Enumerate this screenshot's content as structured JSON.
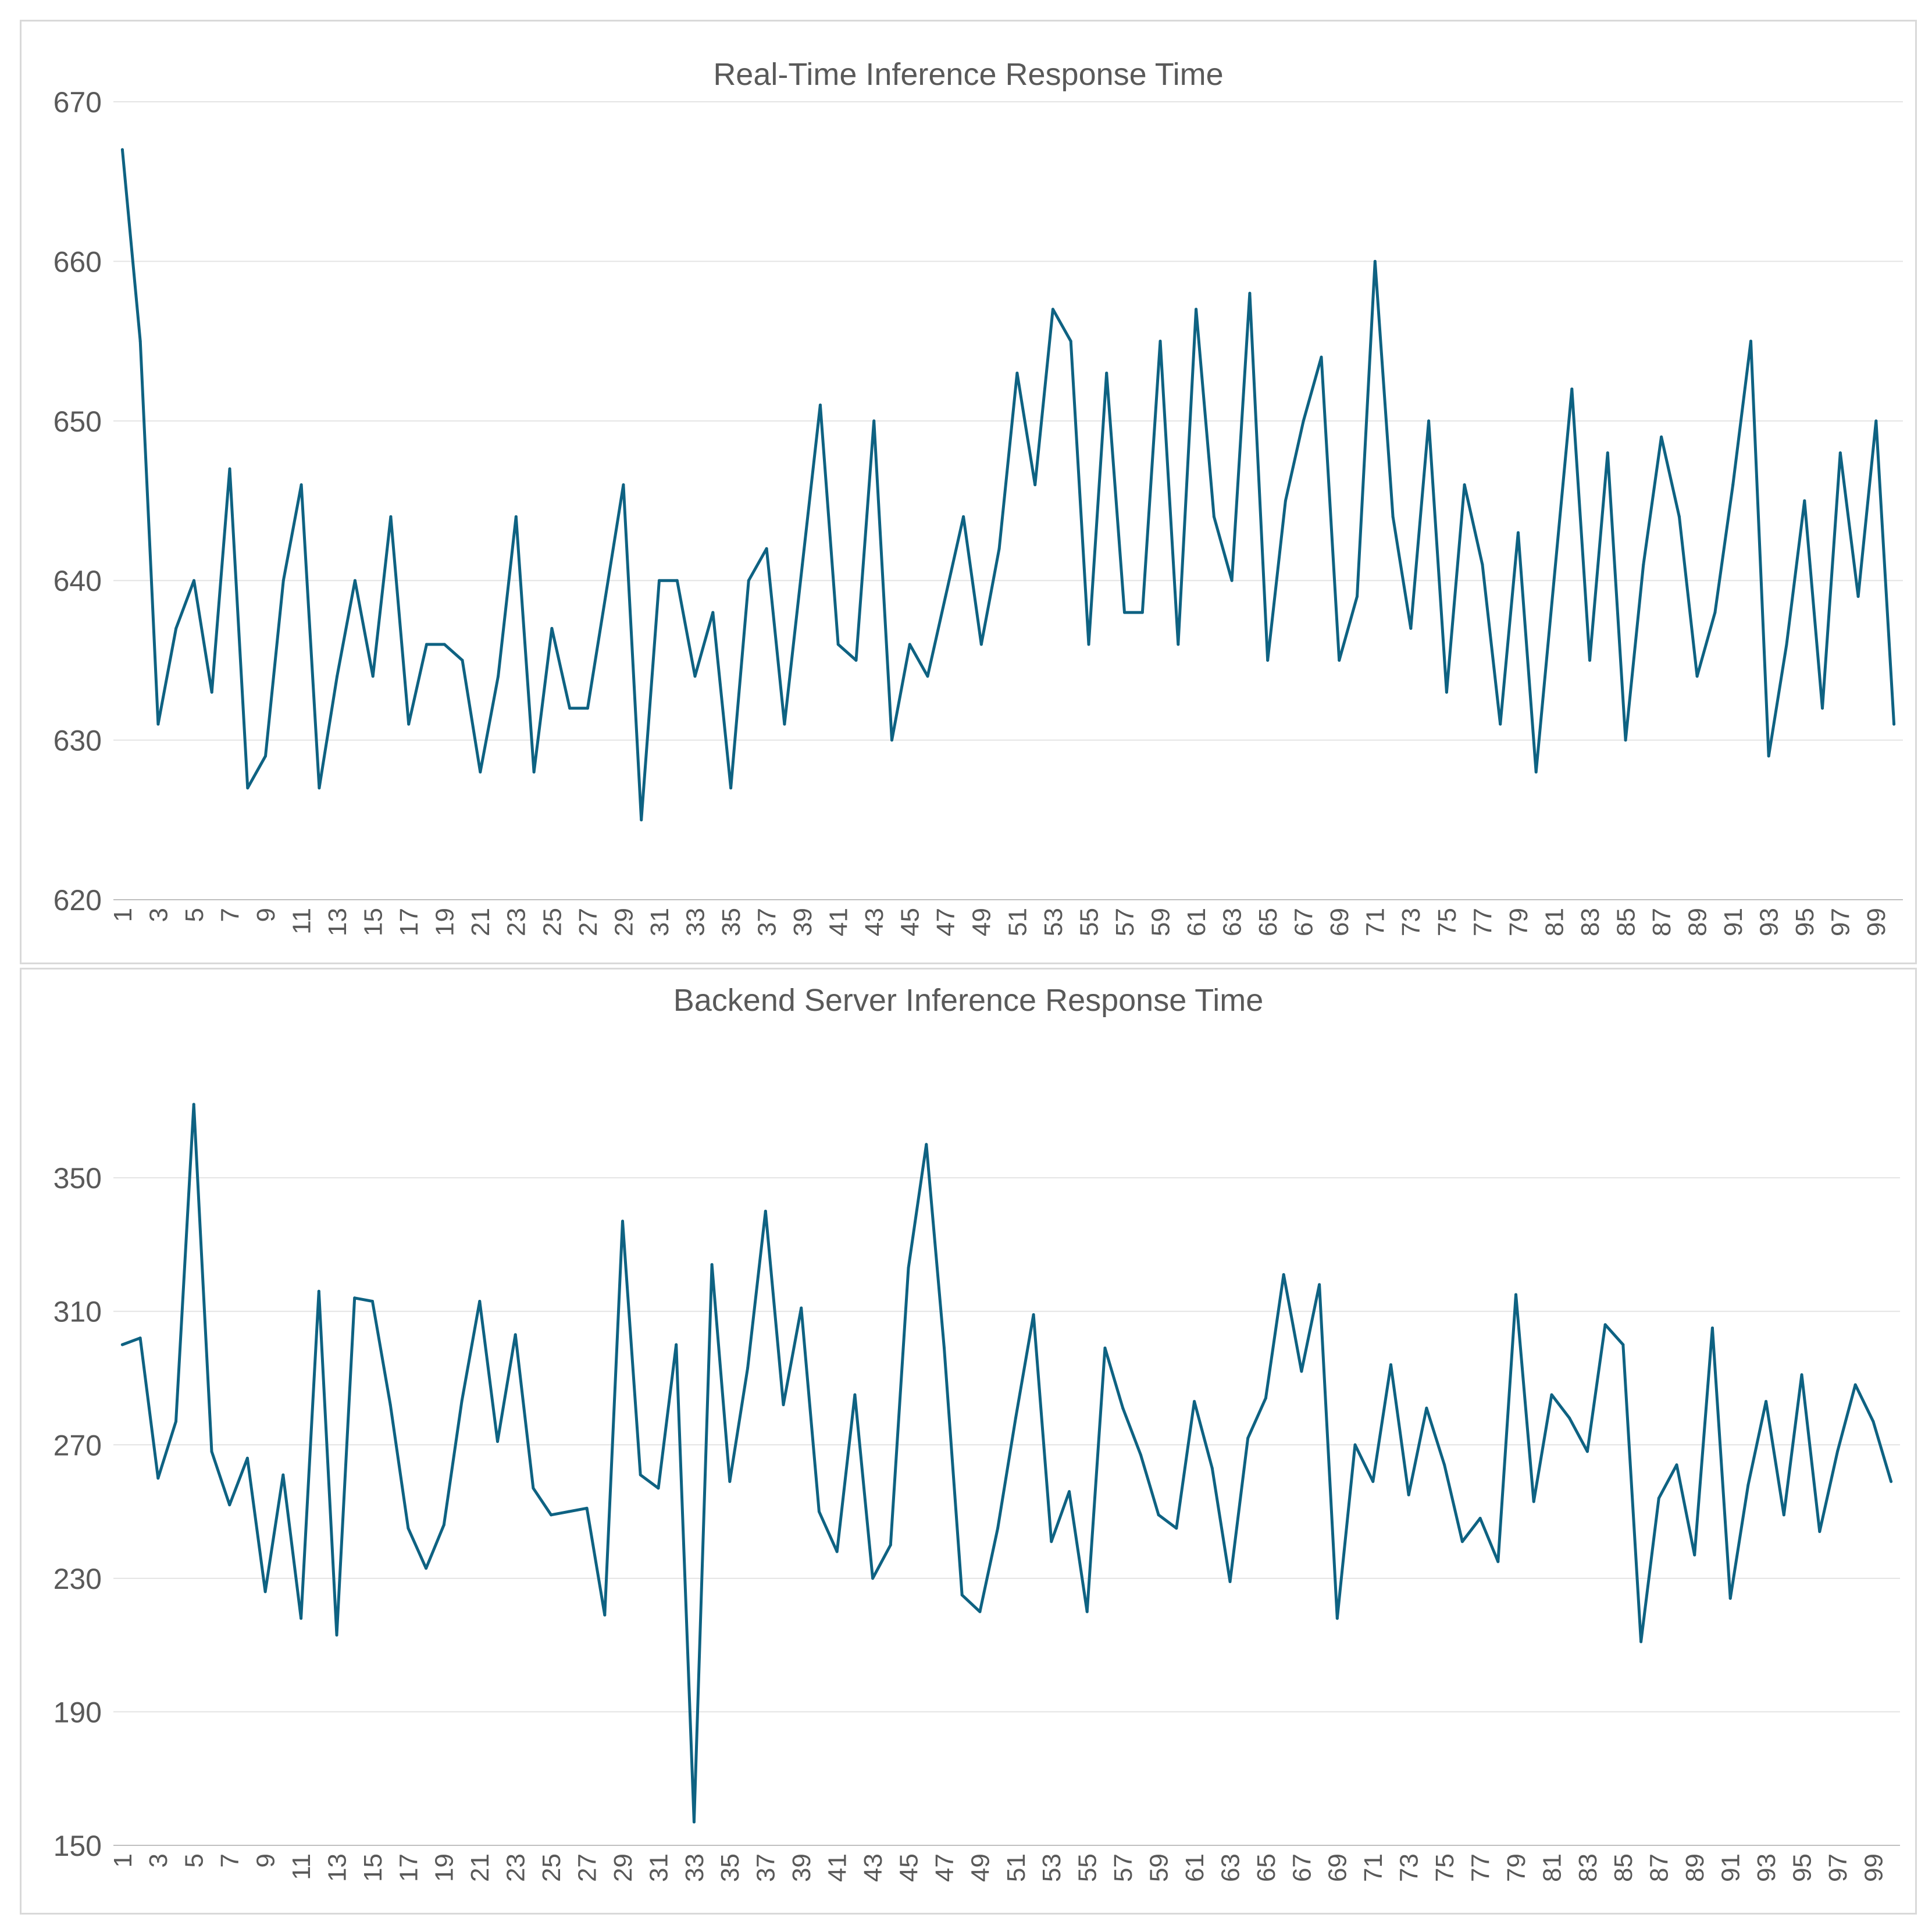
{
  "colors": {
    "line": "#0E6282",
    "grid": "#e4e4e4",
    "text": "#595959",
    "border": "#d9d9d9"
  },
  "charts": {
    "top_title": "Real-Time Inference Response Time",
    "bottom_title": "Backend Server Inference Response Time"
  },
  "chart_data": [
    {
      "type": "line",
      "title": "Real-Time Inference Response Time",
      "xlabel": "",
      "ylabel": "",
      "ylim": [
        620,
        670
      ],
      "yticks": [
        620,
        630,
        640,
        650,
        660,
        670
      ],
      "x_tick_labels_shown": "odd indices 1-99",
      "x": [
        1,
        2,
        3,
        4,
        5,
        6,
        7,
        8,
        9,
        10,
        11,
        12,
        13,
        14,
        15,
        16,
        17,
        18,
        19,
        20,
        21,
        22,
        23,
        24,
        25,
        26,
        27,
        28,
        29,
        30,
        31,
        32,
        33,
        34,
        35,
        36,
        37,
        38,
        39,
        40,
        41,
        42,
        43,
        44,
        45,
        46,
        47,
        48,
        49,
        50,
        51,
        52,
        53,
        54,
        55,
        56,
        57,
        58,
        59,
        60,
        61,
        62,
        63,
        64,
        65,
        66,
        67,
        68,
        69,
        70,
        71,
        72,
        73,
        74,
        75,
        76,
        77,
        78,
        79,
        80,
        81,
        82,
        83,
        84,
        85,
        86,
        87,
        88,
        89,
        90,
        91,
        92,
        93,
        94,
        95,
        96,
        97,
        98,
        99,
        100
      ],
      "series": [
        {
          "values": [
            667,
            655,
            631,
            637,
            640,
            633,
            647,
            627,
            629,
            640,
            646,
            627,
            634,
            640,
            634,
            644,
            631,
            636,
            636,
            635,
            628,
            634,
            644,
            628,
            637,
            632,
            632,
            639,
            646,
            625,
            640,
            640,
            634,
            638,
            627,
            640,
            642,
            631,
            641,
            651,
            636,
            635,
            650,
            630,
            636,
            634,
            639,
            644,
            636,
            642,
            653,
            646,
            657,
            655,
            636,
            653,
            638,
            638,
            655,
            636,
            657,
            644,
            640,
            658,
            635,
            645,
            650,
            654,
            635,
            639,
            660,
            644,
            637,
            650,
            633,
            646,
            641,
            631,
            643,
            628,
            640,
            652,
            635,
            648,
            630,
            641,
            649,
            644,
            634,
            638,
            646,
            655,
            629,
            636,
            645,
            632,
            648,
            639,
            650,
            631
          ]
        }
      ]
    },
    {
      "type": "line",
      "title": "Backend Server Inference Response Time",
      "xlabel": "",
      "ylabel": "",
      "ylim": [
        150,
        380
      ],
      "yticks": [
        150,
        190,
        230,
        270,
        310,
        350
      ],
      "x_tick_labels_shown": "odd indices 1-99",
      "x": [
        1,
        2,
        3,
        4,
        5,
        6,
        7,
        8,
        9,
        10,
        11,
        12,
        13,
        14,
        15,
        16,
        17,
        18,
        19,
        20,
        21,
        22,
        23,
        24,
        25,
        26,
        27,
        28,
        29,
        30,
        31,
        32,
        33,
        34,
        35,
        36,
        37,
        38,
        39,
        40,
        41,
        42,
        43,
        44,
        45,
        46,
        47,
        48,
        49,
        50,
        51,
        52,
        53,
        54,
        55,
        56,
        57,
        58,
        59,
        60,
        61,
        62,
        63,
        64,
        65,
        66,
        67,
        68,
        69,
        70,
        71,
        72,
        73,
        74,
        75,
        76,
        77,
        78,
        79,
        80,
        81,
        82,
        83,
        84,
        85,
        86,
        87,
        88,
        89,
        90,
        91,
        92,
        93,
        94,
        95,
        96,
        97,
        98,
        99,
        100
      ],
      "series": [
        {
          "values": [
            300,
            302,
            260,
            277,
            372,
            268,
            252,
            266,
            226,
            261,
            218,
            316,
            213,
            314,
            313,
            282,
            245,
            233,
            246,
            283,
            313,
            271,
            303,
            257,
            249,
            250,
            251,
            219,
            337,
            261,
            257,
            300,
            157,
            324,
            259,
            293,
            340,
            282,
            311,
            250,
            238,
            285,
            230,
            240,
            323,
            360,
            299,
            225,
            220,
            245,
            278,
            309,
            241,
            256,
            220,
            299,
            281,
            267,
            249,
            245,
            283,
            263,
            229,
            272,
            284,
            321,
            292,
            318,
            218,
            270,
            259,
            294,
            255,
            281,
            264,
            241,
            248,
            235,
            315,
            253,
            285,
            278,
            268,
            306,
            300,
            211,
            254,
            264,
            237,
            305,
            224,
            258,
            283,
            249,
            291,
            244,
            268,
            288,
            277,
            259
          ]
        }
      ]
    }
  ]
}
